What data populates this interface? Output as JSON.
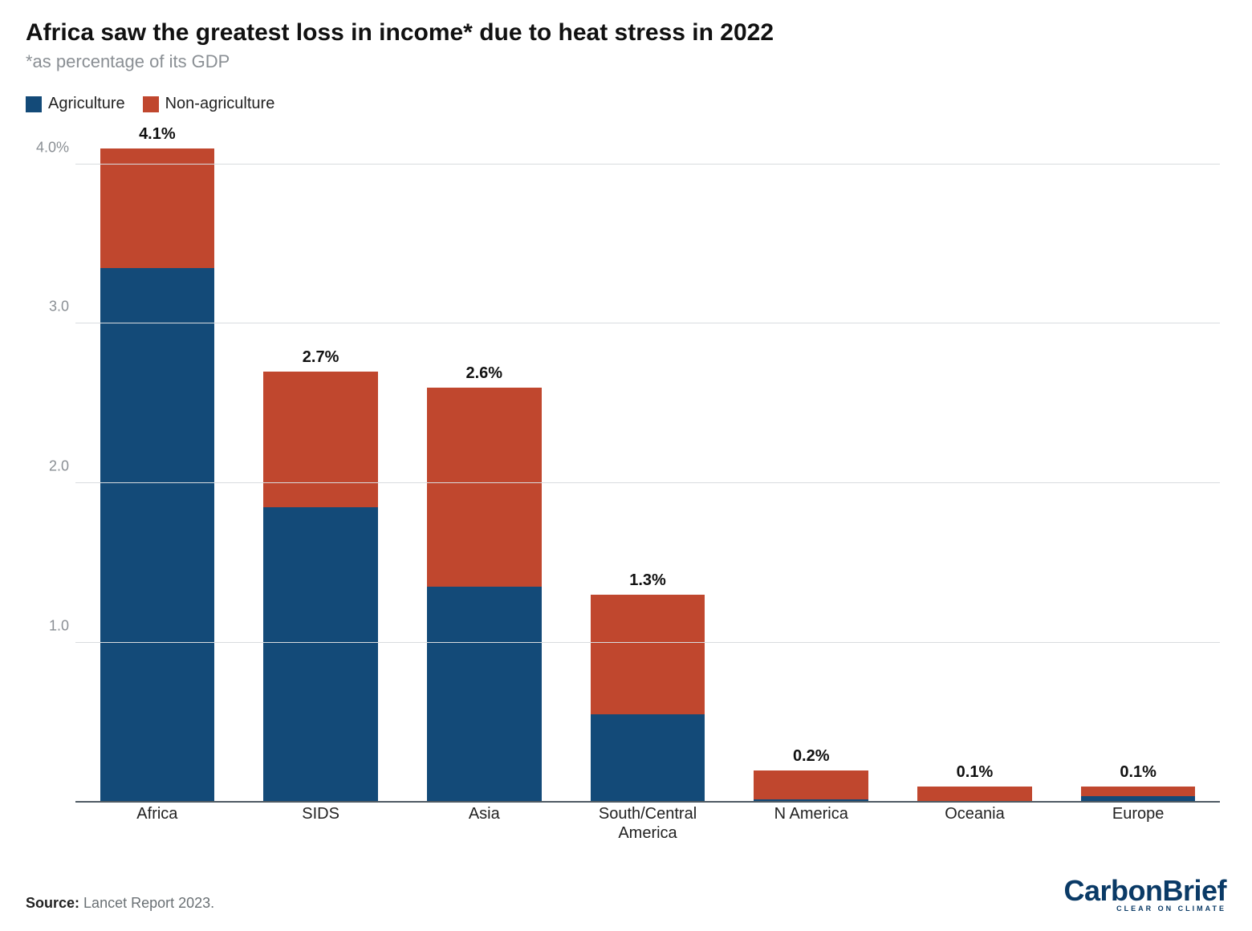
{
  "title": "Africa saw the greatest loss in income* due to heat stress in 2022",
  "subtitle": "*as percentage of its GDP",
  "legend": [
    {
      "label": "Agriculture",
      "color": "#134a78"
    },
    {
      "label": "Non-agriculture",
      "color": "#c0472e"
    }
  ],
  "chart": {
    "type": "stacked-bar",
    "ylim": [
      0,
      4.2
    ],
    "yticks": [
      1.0,
      2.0,
      3.0,
      4.0
    ],
    "ytick_labels": [
      "1.0",
      "2.0",
      "3.0",
      "4.0%"
    ],
    "grid_color": "#d9dcdf",
    "baseline_color": "#4f5a63",
    "bar_width_pct": 70,
    "background_color": "#ffffff",
    "label_fontsize": 20,
    "label_fontweight": 700,
    "axis_fontsize": 18,
    "axis_color": "#8a8f94",
    "xlabel_fontsize": 20,
    "series_colors": {
      "agriculture": "#134a78",
      "non_agriculture": "#c0472e"
    },
    "bars": [
      {
        "category": "Africa",
        "agriculture": 3.35,
        "non_agriculture": 0.75,
        "total_label": "4.1%"
      },
      {
        "category": "SIDS",
        "agriculture": 1.85,
        "non_agriculture": 0.85,
        "total_label": "2.7%"
      },
      {
        "category": "Asia",
        "agriculture": 1.35,
        "non_agriculture": 1.25,
        "total_label": "2.6%"
      },
      {
        "category": "South/Central\nAmerica",
        "agriculture": 0.55,
        "non_agriculture": 0.75,
        "total_label": "1.3%"
      },
      {
        "category": "N America",
        "agriculture": 0.02,
        "non_agriculture": 0.18,
        "total_label": "0.2%"
      },
      {
        "category": "Oceania",
        "agriculture": 0.01,
        "non_agriculture": 0.09,
        "total_label": "0.1%"
      },
      {
        "category": "Europe",
        "agriculture": 0.04,
        "non_agriculture": 0.06,
        "total_label": "0.1%"
      }
    ]
  },
  "source_label": "Source:",
  "source_text": "Lancet Report 2023.",
  "brand_name": "CarbonBrief",
  "brand_tag": "CLEAR ON CLIMATE"
}
